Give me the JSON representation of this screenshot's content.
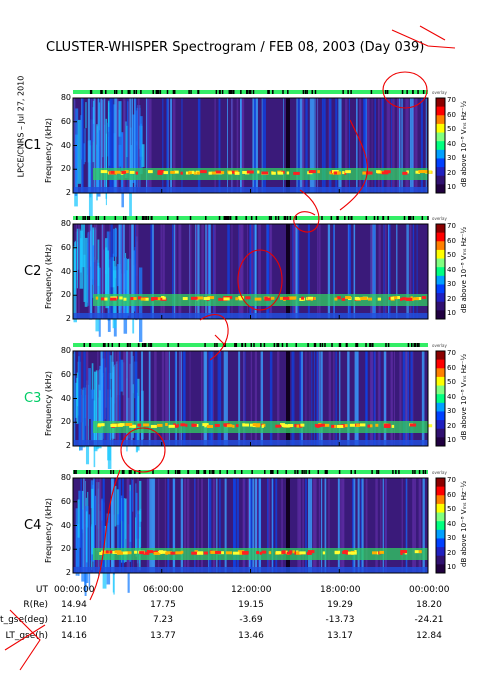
{
  "title": "CLUSTER-WHISPER Spectrogram / FEB 08, 2003 (Day 039)",
  "side_label": "LPCE/CNRS – Jul 27, 2010",
  "chart_data": {
    "type": "heatmap",
    "y_label": "Frequency (kHz)",
    "y_ticks": [
      "80",
      "60",
      "40",
      "20",
      "2"
    ],
    "colorbar": {
      "label": "dB above 10⁻⁸ Vₘₛ Hz⁻½",
      "ticks": [
        "70",
        "60",
        "50",
        "40",
        "30",
        "20",
        "10"
      ]
    },
    "x_ticks": [
      "00:00:00",
      "06:00:00",
      "12:00:00",
      "18:00:00",
      "00:00:00"
    ],
    "panels": [
      {
        "label": "C1",
        "label_color": "#000000",
        "overlay_tag": "overlay"
      },
      {
        "label": "C2",
        "label_color": "#000000",
        "overlay_tag": "overlay"
      },
      {
        "label": "C3",
        "label_color": "#00cc66",
        "overlay_tag": "overlay"
      },
      {
        "label": "C4",
        "label_color": "#000000",
        "overlay_tag": "overlay"
      }
    ]
  },
  "ephemeris": {
    "rows": [
      {
        "label": "UT",
        "values": [
          "00:00:00",
          "06:00:00",
          "12:00:00",
          "18:00:00",
          "00:00:00"
        ]
      },
      {
        "label": "R(Re)",
        "values": [
          "14.94",
          "17.75",
          "19.15",
          "19.29",
          "18.20"
        ]
      },
      {
        "label": "Lat_gse(deg)",
        "values": [
          "21.10",
          "7.23",
          "-3.69",
          "-13.73",
          "-24.21"
        ]
      },
      {
        "label": "LT_gse(h)",
        "values": [
          "14.16",
          "13.77",
          "13.46",
          "13.17",
          "12.84"
        ]
      }
    ]
  }
}
